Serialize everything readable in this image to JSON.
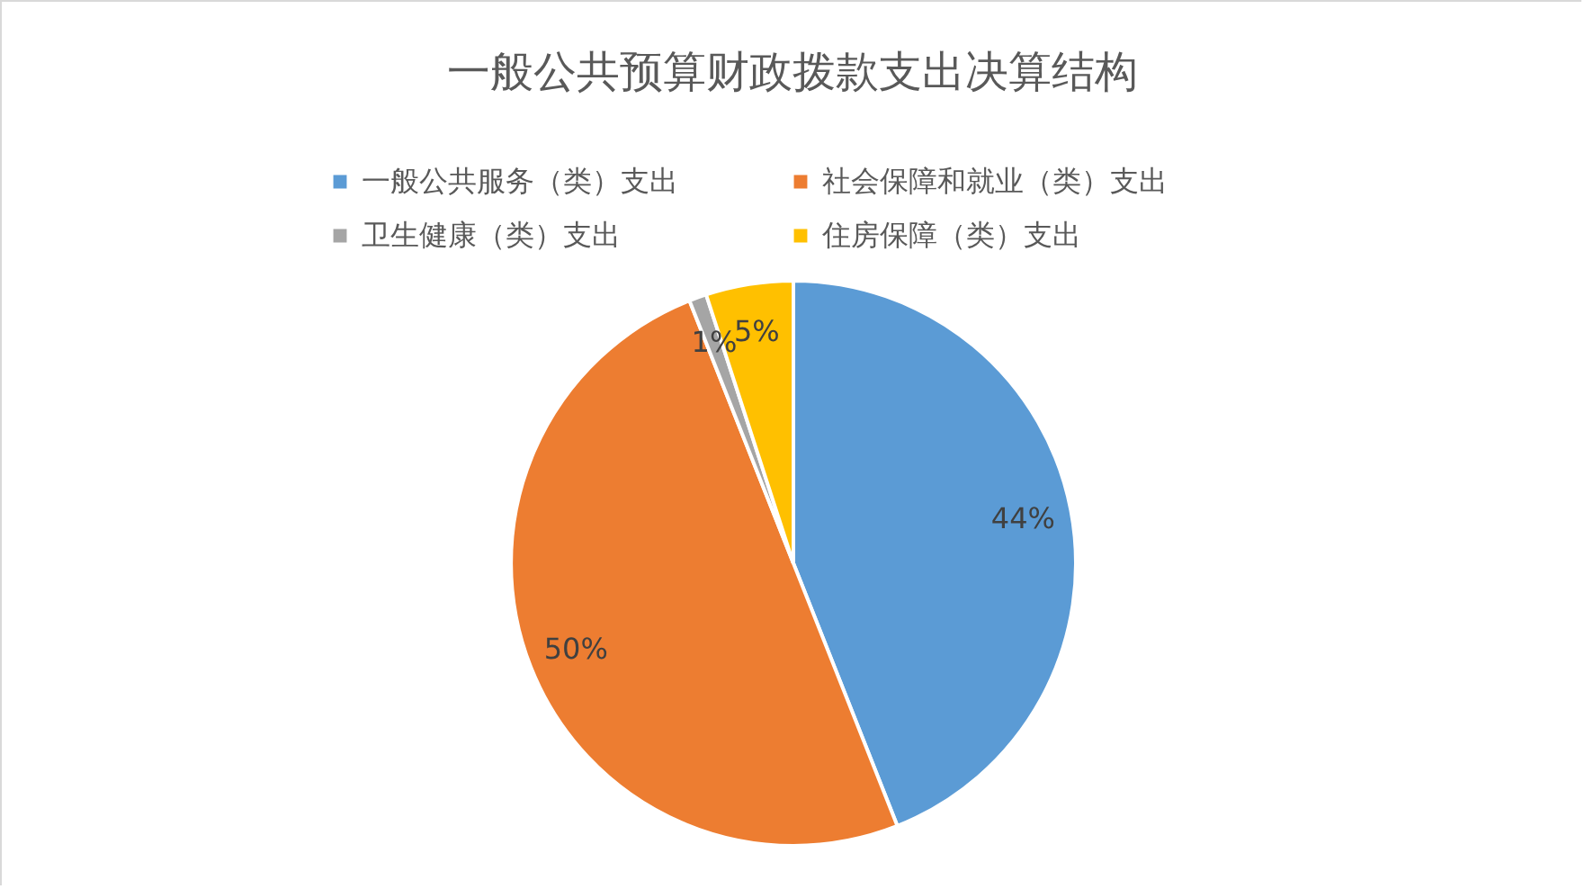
{
  "chart_data": {
    "type": "pie",
    "title": "一般公共预算财政拨款支出决算结构",
    "categories": [
      "一般公共服务（类）支出",
      "社会保障和就业（类）支出",
      "卫生健康（类）支出",
      "住房保障（类）支出"
    ],
    "values": [
      44,
      50,
      1,
      5
    ],
    "colors": [
      "#5b9bd5",
      "#ed7d31",
      "#a5a5a5",
      "#ffc000"
    ],
    "legend": "top",
    "value_labels": [
      "44%",
      "50%",
      "1%",
      "5%"
    ]
  }
}
